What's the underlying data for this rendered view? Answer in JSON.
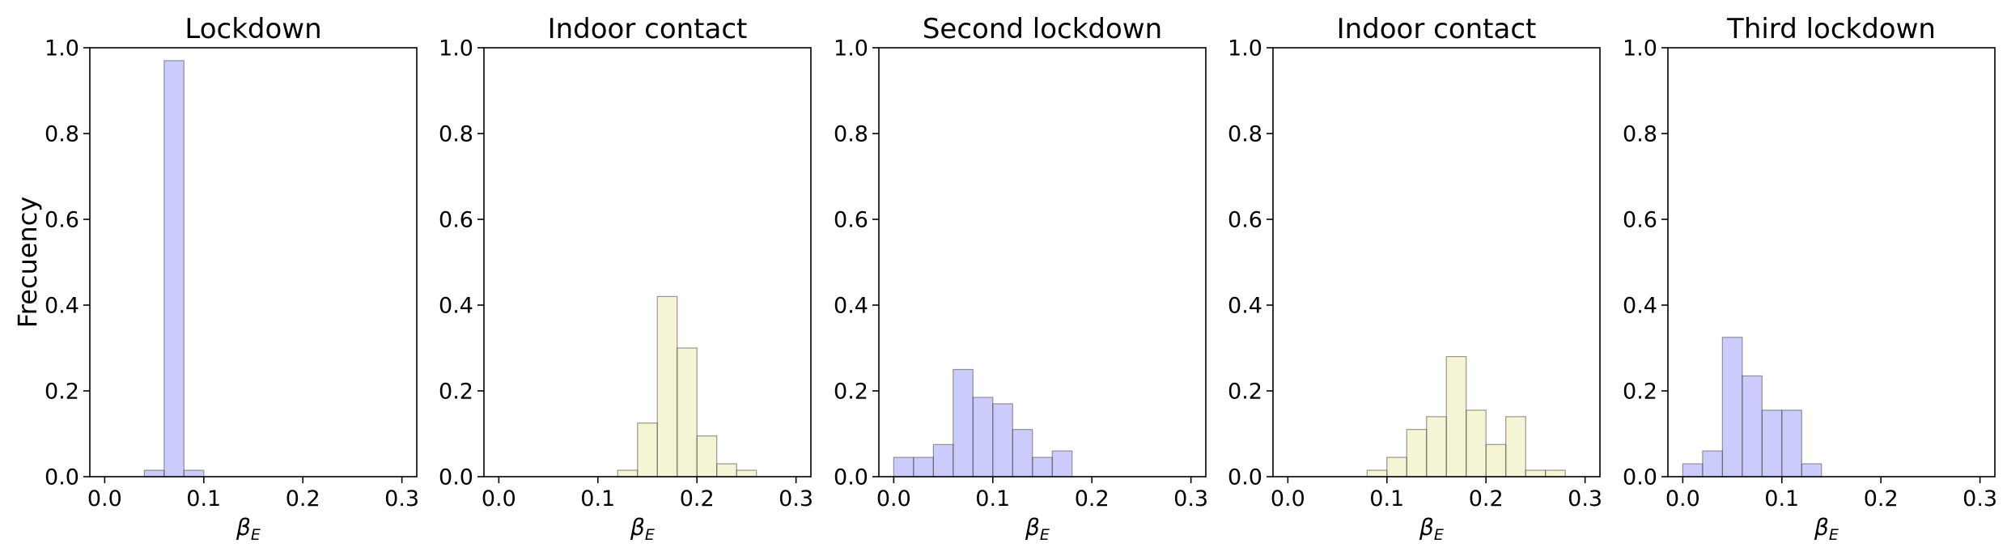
{
  "chart_data": [
    {
      "type": "bar",
      "title": "Lockdown",
      "xlabel": "β_E",
      "xlabel_main": "β",
      "xlabel_sub": "E",
      "ylabel": "Frecuency",
      "xlim": [
        -0.015,
        0.315
      ],
      "ylim": [
        0,
        1.0
      ],
      "xticks": [
        "0.0",
        "0.1",
        "0.2",
        "0.3"
      ],
      "yticks": [
        "0.0",
        "0.2",
        "0.4",
        "0.6",
        "0.8",
        "1.0"
      ],
      "color": "#0000ee",
      "edge_color": "#555555",
      "bins": [
        {
          "x0": 0.04,
          "x1": 0.06,
          "value": 0.015
        },
        {
          "x0": 0.06,
          "x1": 0.08,
          "value": 0.97
        },
        {
          "x0": 0.08,
          "x1": 0.1,
          "value": 0.015
        }
      ]
    },
    {
      "type": "bar",
      "title": "Indoor contact",
      "xlabel": "β_E",
      "xlabel_main": "β",
      "xlabel_sub": "E",
      "ylabel": "",
      "xlim": [
        -0.015,
        0.315
      ],
      "ylim": [
        0,
        1.0
      ],
      "xticks": [
        "0.0",
        "0.1",
        "0.2",
        "0.3"
      ],
      "yticks": [
        "0.0",
        "0.2",
        "0.4",
        "0.6",
        "0.8",
        "1.0"
      ],
      "color": "#cccc33",
      "edge_color": "#555555",
      "bins": [
        {
          "x0": 0.12,
          "x1": 0.14,
          "value": 0.015
        },
        {
          "x0": 0.14,
          "x1": 0.16,
          "value": 0.125
        },
        {
          "x0": 0.16,
          "x1": 0.18,
          "value": 0.42
        },
        {
          "x0": 0.18,
          "x1": 0.2,
          "value": 0.3
        },
        {
          "x0": 0.2,
          "x1": 0.22,
          "value": 0.095
        },
        {
          "x0": 0.22,
          "x1": 0.24,
          "value": 0.03
        },
        {
          "x0": 0.24,
          "x1": 0.26,
          "value": 0.015
        }
      ]
    },
    {
      "type": "bar",
      "title": "Second lockdown",
      "xlabel": "β_E",
      "xlabel_main": "β",
      "xlabel_sub": "E",
      "ylabel": "",
      "xlim": [
        -0.015,
        0.315
      ],
      "ylim": [
        0,
        1.0
      ],
      "xticks": [
        "0.0",
        "0.1",
        "0.2",
        "0.3"
      ],
      "yticks": [
        "0.0",
        "0.2",
        "0.4",
        "0.6",
        "0.8",
        "1.0"
      ],
      "color": "#0000ee",
      "edge_color": "#555555",
      "bins": [
        {
          "x0": 0.0,
          "x1": 0.02,
          "value": 0.045
        },
        {
          "x0": 0.02,
          "x1": 0.04,
          "value": 0.045
        },
        {
          "x0": 0.04,
          "x1": 0.06,
          "value": 0.075
        },
        {
          "x0": 0.06,
          "x1": 0.08,
          "value": 0.25
        },
        {
          "x0": 0.08,
          "x1": 0.1,
          "value": 0.185
        },
        {
          "x0": 0.1,
          "x1": 0.12,
          "value": 0.17
        },
        {
          "x0": 0.12,
          "x1": 0.14,
          "value": 0.11
        },
        {
          "x0": 0.14,
          "x1": 0.16,
          "value": 0.045
        },
        {
          "x0": 0.16,
          "x1": 0.18,
          "value": 0.06
        }
      ]
    },
    {
      "type": "bar",
      "title": "Indoor contact",
      "xlabel": "β_E",
      "xlabel_main": "β",
      "xlabel_sub": "E",
      "ylabel": "",
      "xlim": [
        -0.015,
        0.315
      ],
      "ylim": [
        0,
        1.0
      ],
      "xticks": [
        "0.0",
        "0.1",
        "0.2",
        "0.3"
      ],
      "yticks": [
        "0.0",
        "0.2",
        "0.4",
        "0.6",
        "0.8",
        "1.0"
      ],
      "color": "#cccc33",
      "edge_color": "#555555",
      "bins": [
        {
          "x0": 0.08,
          "x1": 0.1,
          "value": 0.015
        },
        {
          "x0": 0.1,
          "x1": 0.12,
          "value": 0.045
        },
        {
          "x0": 0.12,
          "x1": 0.14,
          "value": 0.11
        },
        {
          "x0": 0.14,
          "x1": 0.16,
          "value": 0.14
        },
        {
          "x0": 0.16,
          "x1": 0.18,
          "value": 0.28
        },
        {
          "x0": 0.18,
          "x1": 0.2,
          "value": 0.155
        },
        {
          "x0": 0.2,
          "x1": 0.22,
          "value": 0.075
        },
        {
          "x0": 0.22,
          "x1": 0.24,
          "value": 0.14
        },
        {
          "x0": 0.24,
          "x1": 0.26,
          "value": 0.015
        },
        {
          "x0": 0.26,
          "x1": 0.28,
          "value": 0.015
        }
      ]
    },
    {
      "type": "bar",
      "title": "Third lockdown",
      "xlabel": "β_E",
      "xlabel_main": "β",
      "xlabel_sub": "E",
      "ylabel": "",
      "xlim": [
        -0.015,
        0.315
      ],
      "ylim": [
        0,
        1.0
      ],
      "xticks": [
        "0.0",
        "0.1",
        "0.2",
        "0.3"
      ],
      "yticks": [
        "0.0",
        "0.2",
        "0.4",
        "0.6",
        "0.8",
        "1.0"
      ],
      "color": "#0000ee",
      "edge_color": "#555555",
      "bins": [
        {
          "x0": 0.0,
          "x1": 0.02,
          "value": 0.03
        },
        {
          "x0": 0.02,
          "x1": 0.04,
          "value": 0.06
        },
        {
          "x0": 0.04,
          "x1": 0.06,
          "value": 0.325
        },
        {
          "x0": 0.06,
          "x1": 0.08,
          "value": 0.235
        },
        {
          "x0": 0.08,
          "x1": 0.1,
          "value": 0.155
        },
        {
          "x0": 0.1,
          "x1": 0.12,
          "value": 0.155
        },
        {
          "x0": 0.12,
          "x1": 0.14,
          "value": 0.03
        }
      ]
    }
  ]
}
